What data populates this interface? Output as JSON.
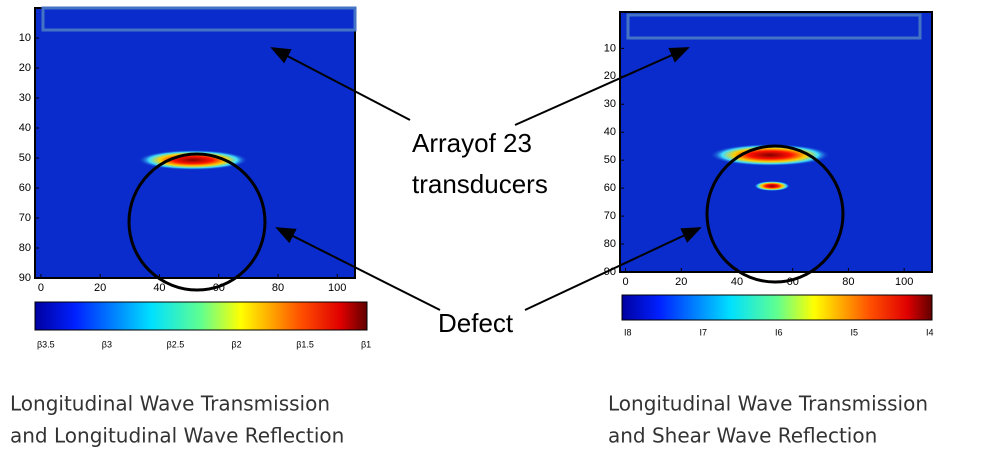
{
  "chart_data": [
    {
      "type": "heatmap",
      "xlim": [
        -2,
        106
      ],
      "ylim": [
        0,
        90
      ],
      "xticks": [
        0,
        20,
        40,
        60,
        80,
        100
      ],
      "yticks": [
        10,
        20,
        30,
        40,
        50,
        60,
        70,
        80,
        90
      ],
      "colorbar_labels": [
        "β3.5",
        "β3",
        "β2.5",
        "β2",
        "β1.5",
        "β1"
      ],
      "caption": [
        "Longitudinal Wave Transmission",
        "and Longitudinal Wave Reflection"
      ]
    },
    {
      "type": "heatmap",
      "xlim": [
        -2,
        110
      ],
      "ylim": [
        -3,
        90
      ],
      "xticks": [
        0,
        20,
        40,
        60,
        80,
        100
      ],
      "yticks": [
        10,
        20,
        30,
        40,
        50,
        60,
        70,
        80,
        90
      ],
      "colorbar_labels": [
        "I8",
        "I7",
        "I6",
        "I5",
        "I4"
      ],
      "caption": [
        "Longitudinal Wave Transmission",
        "and Shear Wave Reflection"
      ]
    }
  ],
  "annotations": {
    "array": [
      "Arrayof 23",
      "transducers"
    ],
    "defect": "Defect"
  }
}
